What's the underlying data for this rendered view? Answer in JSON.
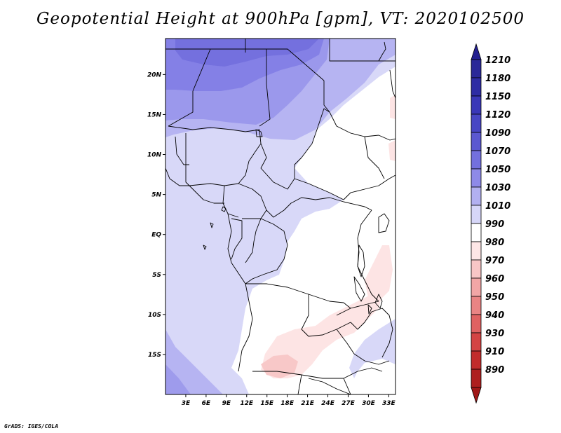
{
  "title": "Geopotential Height at 900hPa [gpm], VT: 2020102500",
  "credit": "GrADS: IGES/COLA",
  "map": {
    "lon_range": [
      0,
      34
    ],
    "lat_range": [
      -20,
      24.5
    ],
    "lat_ticks": [
      {
        "value": 20,
        "label": "20N"
      },
      {
        "value": 15,
        "label": "15N"
      },
      {
        "value": 10,
        "label": "10N"
      },
      {
        "value": 5,
        "label": "5N"
      },
      {
        "value": 0,
        "label": "EQ"
      },
      {
        "value": -5,
        "label": "5S"
      },
      {
        "value": -10,
        "label": "10S"
      },
      {
        "value": -15,
        "label": "15S"
      }
    ],
    "lon_ticks": [
      {
        "value": 3,
        "label": "3E"
      },
      {
        "value": 6,
        "label": "6E"
      },
      {
        "value": 9,
        "label": "9E"
      },
      {
        "value": 12,
        "label": "12E"
      },
      {
        "value": 15,
        "label": "15E"
      },
      {
        "value": 18,
        "label": "18E"
      },
      {
        "value": 21,
        "label": "21E"
      },
      {
        "value": 24,
        "label": "24E"
      },
      {
        "value": 27,
        "label": "27E"
      },
      {
        "value": 30,
        "label": "30E"
      },
      {
        "value": 33,
        "label": "33E"
      }
    ]
  },
  "colorbar": {
    "levels": [
      {
        "label": "1210",
        "color": "#2a2898"
      },
      {
        "label": "1180",
        "color": "#2e2ca4"
      },
      {
        "label": "1150",
        "color": "#3a37b8"
      },
      {
        "label": "1120",
        "color": "#4846c4"
      },
      {
        "label": "1090",
        "color": "#5b58d0"
      },
      {
        "label": "1070",
        "color": "#7370de"
      },
      {
        "label": "1050",
        "color": "#8e8ae8"
      },
      {
        "label": "1030",
        "color": "#b2b0f0"
      },
      {
        "label": "1010",
        "color": "#d6d6f8"
      },
      {
        "label": "990",
        "color": "#ffffff"
      },
      {
        "label": "980",
        "color": "#fde6e6"
      },
      {
        "label": "970",
        "color": "#f8c6c6"
      },
      {
        "label": "960",
        "color": "#f2a6a6"
      },
      {
        "label": "950",
        "color": "#ea8484"
      },
      {
        "label": "940",
        "color": "#e06262"
      },
      {
        "label": "930",
        "color": "#d44444"
      },
      {
        "label": "910",
        "color": "#c22c2c"
      },
      {
        "label": "890",
        "color": "#ae1f1f"
      }
    ],
    "top_color": "#242090",
    "bottom_color": "#a01818"
  }
}
